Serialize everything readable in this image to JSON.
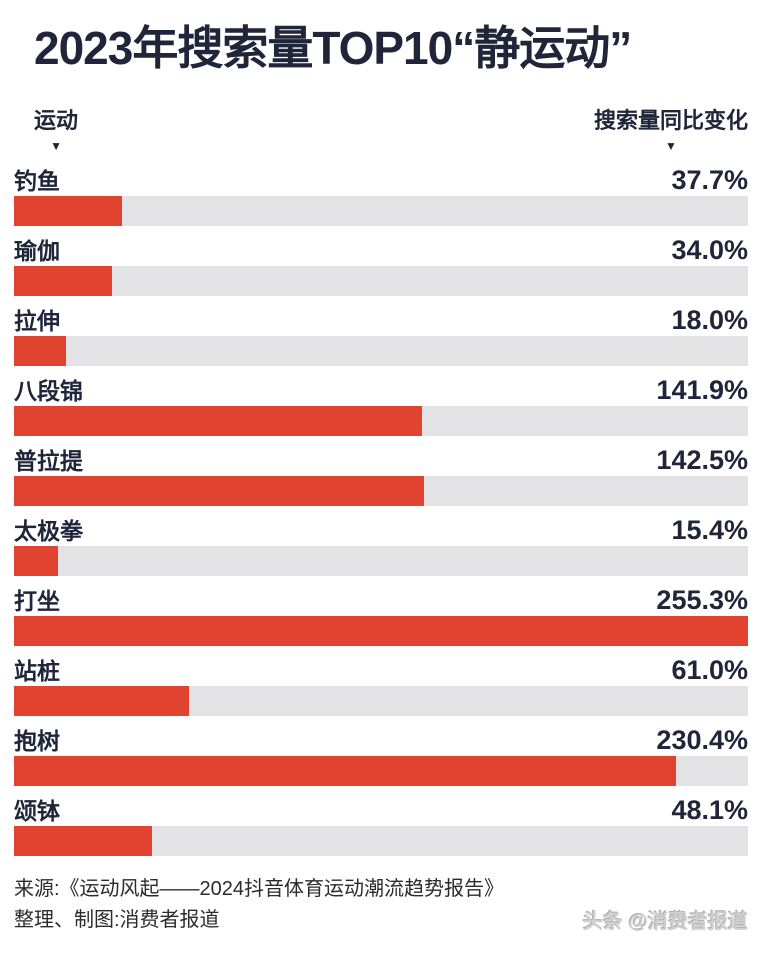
{
  "title": "2023年搜索量TOP10“静运动”",
  "columns": {
    "left_label": "运动",
    "right_label": "搜索量同比变化",
    "sort_icon": "▼"
  },
  "chart_data": {
    "type": "bar",
    "orientation": "horizontal",
    "title": "2023年搜索量TOP10“静运动”",
    "categories": [
      "钓鱼",
      "瑜伽",
      "拉伸",
      "八段锦",
      "普拉提",
      "太极拳",
      "打坐",
      "站桩",
      "抱树",
      "颂钵"
    ],
    "values": [
      37.7,
      34.0,
      18.0,
      141.9,
      142.5,
      15.4,
      255.3,
      61.0,
      230.4,
      48.1
    ],
    "value_suffix": "%",
    "xlabel": "搜索量同比变化",
    "ylabel": "运动",
    "xlim": [
      0,
      255.3
    ],
    "grid": false,
    "legend": "none"
  },
  "footer": {
    "source_line": "来源:《运动风起——2024抖音体育运动潮流趋势报告》",
    "credit_line": "整理、制图:消费者报道",
    "watermark": "头条 @消费者报道"
  },
  "colors": {
    "ink": "#20253A",
    "bar_fill": "#E04431",
    "bar_track": "#E3E3E5",
    "watermark": "#CFCFCF"
  }
}
